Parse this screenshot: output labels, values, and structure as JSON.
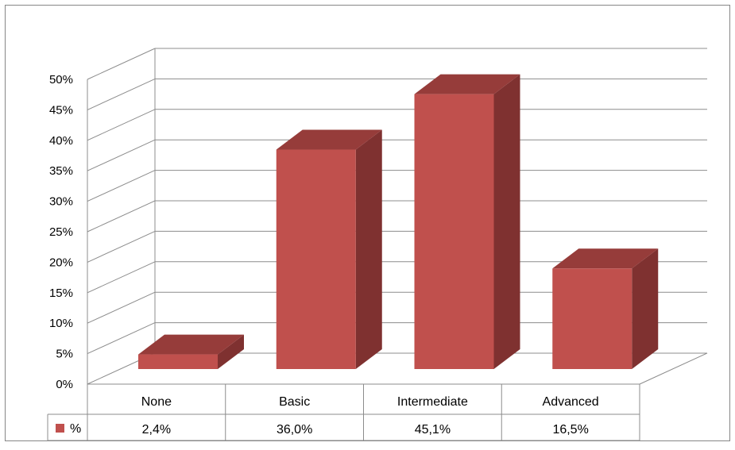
{
  "chart_data": {
    "type": "bar",
    "title": "",
    "xlabel": "",
    "ylabel": "",
    "categories": [
      "None",
      "Basic",
      "Intermediate",
      "Advanced"
    ],
    "series": [
      {
        "name": "%",
        "values": [
          2.4,
          36.0,
          45.1,
          16.5
        ],
        "value_labels": [
          "2,4%",
          "36,0%",
          "45,1%",
          "16,5%"
        ],
        "color_front": "#c0504d",
        "color_top": "#963c3a",
        "color_side": "#7f3130"
      }
    ],
    "ylim": [
      0,
      50
    ],
    "yticks": [
      "0%",
      "5%",
      "10%",
      "15%",
      "20%",
      "25%",
      "30%",
      "35%",
      "40%",
      "45%",
      "50%"
    ],
    "grid": true,
    "legend": "data-table",
    "style": "3d-clustered-column-with-data-table"
  }
}
